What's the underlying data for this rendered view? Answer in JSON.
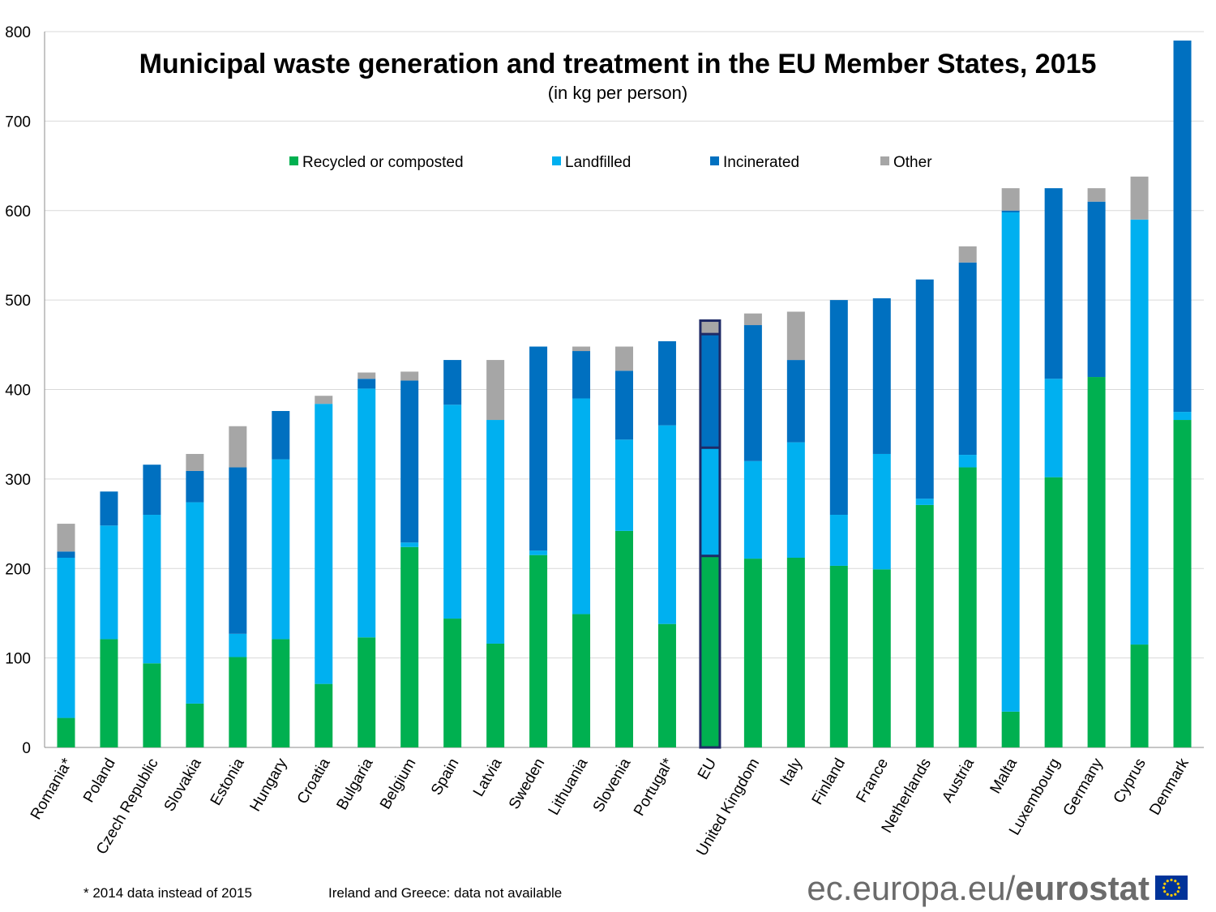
{
  "chart_data": {
    "type": "bar",
    "stacked": true,
    "title": "Municipal waste generation and treatment in the EU Member States, 2015",
    "subtitle": "(in kg per person)",
    "ylim": [
      0,
      800
    ],
    "yticks": [
      0,
      100,
      200,
      300,
      400,
      500,
      600,
      700,
      800
    ],
    "grid": true,
    "legend_position": "top-center",
    "categories": [
      "Romania*",
      "Poland",
      "Czech Republic",
      "Slovakia",
      "Estonia",
      "Hungary",
      "Croatia",
      "Bulgaria",
      "Belgium",
      "Spain",
      "Latvia",
      "Sweden",
      "Lithuania",
      "Slovenia",
      "Portugal*",
      "EU",
      "United Kingdom",
      "Italy",
      "Finland",
      "France",
      "Netherlands",
      "Austria",
      "Malta",
      "Luxembourg",
      "Germany",
      "Cyprus",
      "Denmark"
    ],
    "highlight_category": "EU",
    "series": [
      {
        "name": "Recycled or composted",
        "color": "#00b050",
        "values": [
          33,
          121,
          94,
          49,
          101,
          121,
          71,
          123,
          224,
          144,
          116,
          215,
          149,
          242,
          138,
          214,
          211,
          212,
          203,
          199,
          271,
          313,
          40,
          302,
          414,
          115,
          366
        ]
      },
      {
        "name": "Landfilled",
        "color": "#00b0f0",
        "values": [
          179,
          127,
          166,
          225,
          26,
          201,
          313,
          278,
          5,
          239,
          250,
          5,
          241,
          102,
          222,
          121,
          109,
          129,
          57,
          129,
          7,
          14,
          558,
          110,
          0,
          475,
          9
        ]
      },
      {
        "name": "Incinerated",
        "color": "#0070c0",
        "values": [
          7,
          38,
          56,
          35,
          186,
          54,
          0,
          11,
          181,
          50,
          0,
          228,
          53,
          77,
          94,
          127,
          152,
          92,
          240,
          174,
          245,
          215,
          2,
          213,
          196,
          0,
          415
        ]
      },
      {
        "name": "Other",
        "color": "#a6a6a6",
        "values": [
          31,
          0,
          0,
          19,
          46,
          0,
          9,
          7,
          10,
          0,
          67,
          0,
          5,
          27,
          0,
          15,
          13,
          54,
          0,
          0,
          0,
          18,
          25,
          0,
          15,
          48,
          0
        ]
      }
    ]
  },
  "footnotes": {
    "note_2014": "* 2014 data instead of 2015",
    "note_na": "Ireland and Greece: data not available"
  },
  "branding": {
    "site": "ec.europa.eu/",
    "name": "eurostat",
    "flag_color": "#003399",
    "star_color": "#ffcc00"
  }
}
